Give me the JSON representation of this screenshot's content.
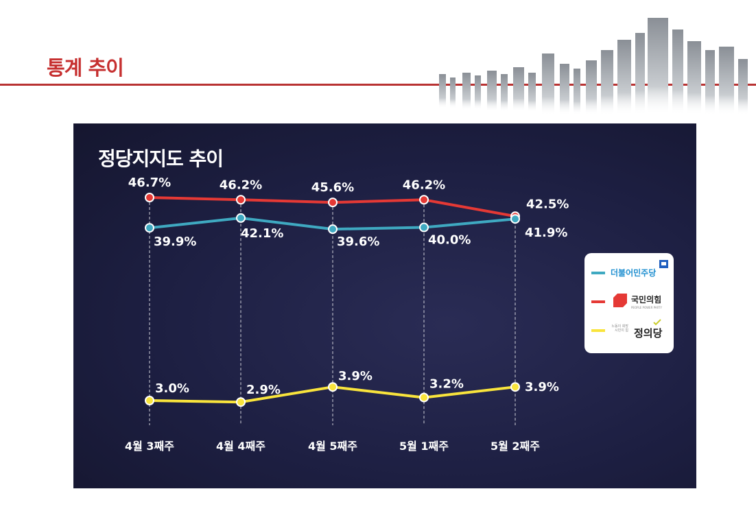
{
  "page": {
    "title": "통계 추이"
  },
  "chart_data": {
    "type": "line",
    "title": "정당지지도 추이",
    "categories": [
      "4월 3째주",
      "4월 4째주",
      "4월 5째주",
      "5월 1째주",
      "5월 2째주"
    ],
    "ylim": [
      0,
      50
    ],
    "grid": false,
    "legend_position": "right",
    "series": [
      {
        "color": "#e53935",
        "values": [
          46.7,
          46.2,
          45.6,
          46.2,
          42.5
        ],
        "labels": [
          "46.7%",
          "46.2%",
          "45.6%",
          "46.2%",
          "42.5%"
        ]
      },
      {
        "color": "#3fa9c1",
        "values": [
          39.9,
          42.1,
          39.6,
          40.0,
          41.9
        ],
        "labels": [
          "39.9%",
          "42.1%",
          "39.6%",
          "40.0%",
          "41.9%"
        ]
      },
      {
        "color": "#f9e43c",
        "values": [
          3.0,
          2.9,
          3.9,
          3.2,
          3.9
        ],
        "labels": [
          "3.0%",
          "2.9%",
          "3.9%",
          "3.2%",
          "3.9%"
        ]
      }
    ]
  },
  "legend": {
    "items": [
      {
        "label": "더불어민주당",
        "color": "#3fa9c1",
        "text_color": "#1f8fd0",
        "icon": "flag-icon"
      },
      {
        "label": "국민의힘",
        "color": "#e53935",
        "text_color": "#222222",
        "sub": "PEOPLE POWER PARTY",
        "icon": "red-party-logo-icon"
      },
      {
        "label": "정의당",
        "color": "#f9e43c",
        "text_color": "#222222",
        "pre": "노동이 희망 시민이 힘",
        "icon": "check-icon"
      }
    ]
  }
}
